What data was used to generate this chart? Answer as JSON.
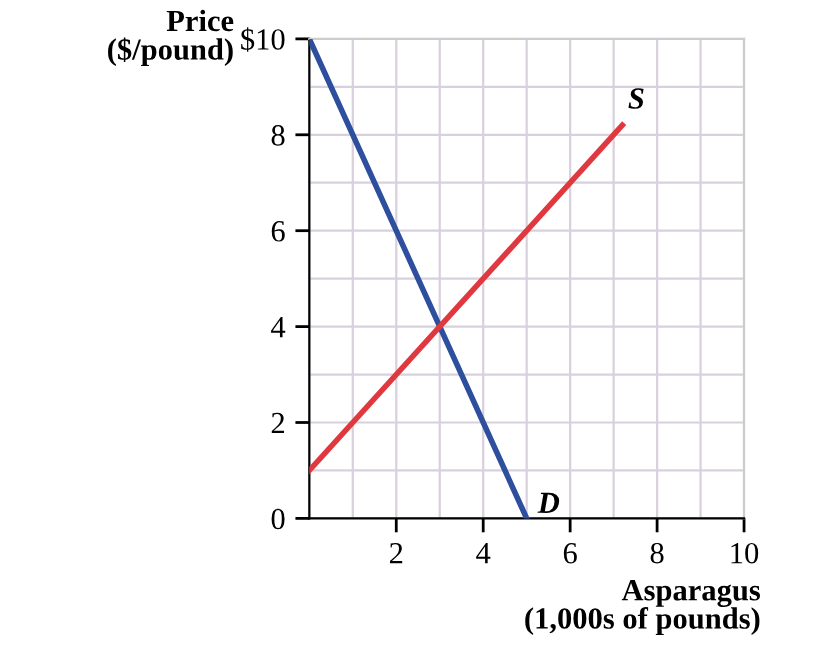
{
  "chart_data": {
    "type": "line",
    "xlabel": "Asparagus\n(1,000s of pounds)",
    "ylabel": "Price\n($/pound)",
    "series": [
      {
        "name": "D",
        "color": "#2e4f9e",
        "x": [
          0,
          5
        ],
        "values": [
          10,
          0
        ]
      },
      {
        "name": "S",
        "color": "#e0383f",
        "x": [
          0,
          7.2
        ],
        "values": [
          1,
          8.2
        ]
      }
    ],
    "xlim": [
      0,
      10
    ],
    "ylim": [
      0,
      10
    ],
    "xticks": [
      {
        "value": 0,
        "label": null
      },
      {
        "value": 1,
        "label": null
      },
      2,
      {
        "value": 3,
        "label": null
      },
      4,
      {
        "value": 5,
        "label": null
      },
      6,
      {
        "value": 7,
        "label": null
      },
      8,
      {
        "value": 9,
        "label": null
      },
      10
    ],
    "yticks": [
      0,
      {
        "value": 1,
        "label": null
      },
      2,
      {
        "value": 3,
        "label": null
      },
      4,
      {
        "value": 5,
        "label": null
      },
      6,
      {
        "value": 7,
        "label": null
      },
      8,
      {
        "value": 9,
        "label": null
      },
      {
        "value": 10,
        "label": "$10"
      }
    ],
    "grid": true,
    "marker": "none",
    "line_style": "solid"
  }
}
